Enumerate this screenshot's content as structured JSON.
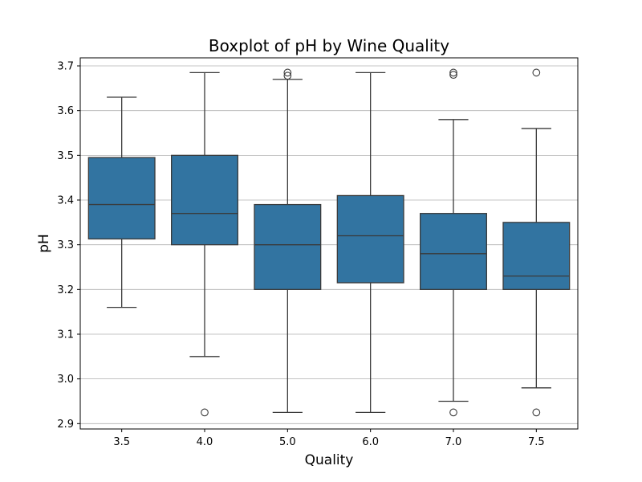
{
  "chart_data": {
    "type": "box",
    "title": "Boxplot of pH by Wine Quality",
    "xlabel": "Quality",
    "ylabel": "pH",
    "ylim": [
      2.888,
      3.718
    ],
    "yticks": [
      "2.9",
      "3.0",
      "3.1",
      "3.2",
      "3.3",
      "3.4",
      "3.5",
      "3.6",
      "3.7"
    ],
    "grid": "y",
    "box_color": "#3274a1",
    "categories": [
      "3.5",
      "4.0",
      "5.0",
      "6.0",
      "7.0",
      "7.5"
    ],
    "boxes": [
      {
        "category": "3.5",
        "whisker_low": 3.16,
        "q1": 3.313,
        "median": 3.39,
        "q3": 3.495,
        "whisker_high": 3.63,
        "outliers": []
      },
      {
        "category": "4.0",
        "whisker_low": 3.05,
        "q1": 3.3,
        "median": 3.37,
        "q3": 3.5,
        "whisker_high": 3.685,
        "outliers": [
          2.925
        ]
      },
      {
        "category": "5.0",
        "whisker_low": 2.925,
        "q1": 3.2,
        "median": 3.3,
        "q3": 3.39,
        "whisker_high": 3.67,
        "outliers": [
          3.678,
          3.685
        ]
      },
      {
        "category": "6.0",
        "whisker_low": 2.925,
        "q1": 3.215,
        "median": 3.32,
        "q3": 3.41,
        "whisker_high": 3.685,
        "outliers": []
      },
      {
        "category": "7.0",
        "whisker_low": 2.95,
        "q1": 3.2,
        "median": 3.28,
        "q3": 3.37,
        "whisker_high": 3.58,
        "outliers": [
          2.925,
          3.68,
          3.685
        ]
      },
      {
        "category": "7.5",
        "whisker_low": 2.98,
        "q1": 3.2,
        "median": 3.23,
        "q3": 3.35,
        "whisker_high": 3.56,
        "outliers": [
          2.925,
          3.685
        ]
      }
    ]
  }
}
